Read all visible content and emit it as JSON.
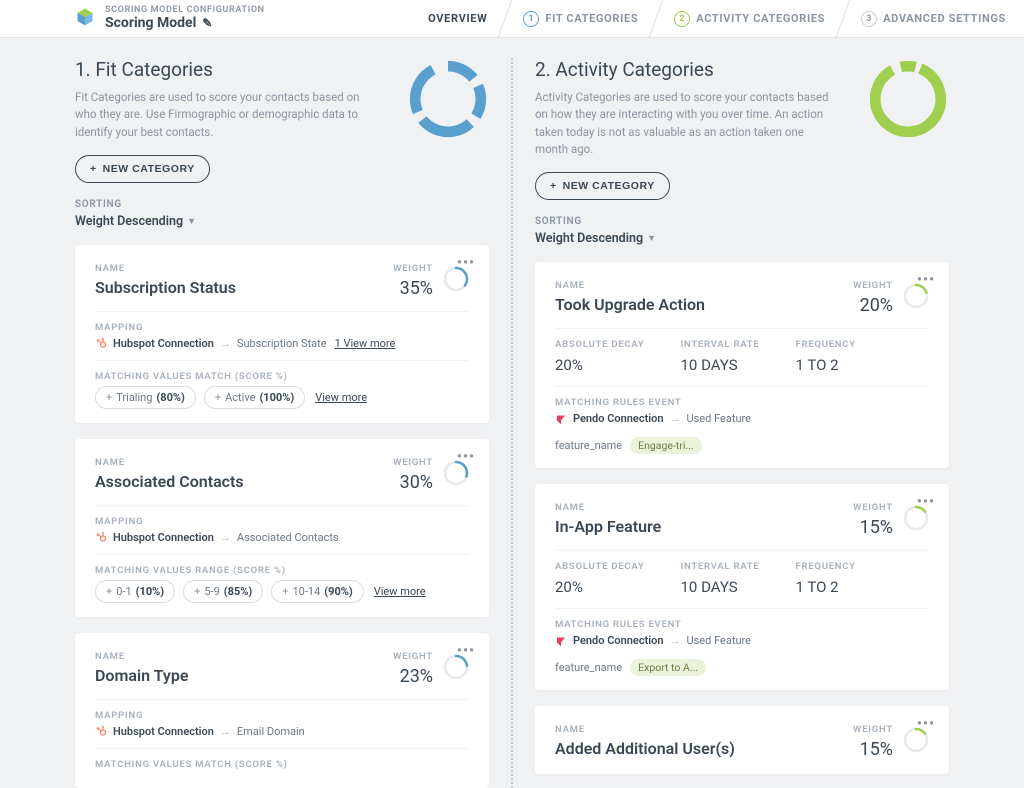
{
  "header": {
    "breadcrumb_top": "SCORING MODEL CONFIGURATION",
    "title": "Scoring Model",
    "steps": {
      "overview": "OVERVIEW",
      "fit": "FIT CATEGORIES",
      "activity": "ACTIVITY CATEGORIES",
      "advanced": "ADVANCED SETTINGS"
    }
  },
  "colors": {
    "fit": "#5aa0cf",
    "activity": "#a0ce4e",
    "ring_track": "#e6e9ed",
    "hubspot": "#ff7a59",
    "pendo": "#e83e5a"
  },
  "left": {
    "title": "1. Fit Categories",
    "desc": "Fit Categories are used to score your contacts based on who they are. Use Firmographic or demographic data to identify your best contacts.",
    "new_btn": "NEW CATEGORY",
    "sorting_label": "SORTING",
    "sorting_value": "Weight Descending",
    "donut_segments": [
      46,
      14,
      50,
      14,
      85,
      14,
      78,
      25
    ],
    "cards": [
      {
        "name_label": "NAME",
        "weight_label": "WEIGHT",
        "title": "Subscription Status",
        "weight": "35%",
        "ring_pct": 35,
        "mapping_label": "MAPPING",
        "conn_name": "Hubspot Connection",
        "map_target": "Subscription State",
        "view_more": "1 View more",
        "match_label": "MATCHING VALUES MATCH (SCORE %)",
        "pills": [
          {
            "text": "Trialing",
            "pct": "(80%)"
          },
          {
            "text": "Active",
            "pct": "(100%)"
          }
        ],
        "pills_view_more": "View more"
      },
      {
        "name_label": "NAME",
        "weight_label": "WEIGHT",
        "title": "Associated Contacts",
        "weight": "30%",
        "ring_pct": 30,
        "mapping_label": "MAPPING",
        "conn_name": "Hubspot Connection",
        "map_target": "Associated Contacts",
        "match_label": "MATCHING VALUES RANGE (SCORE %)",
        "pills": [
          {
            "text": "0-1",
            "pct": "(10%)"
          },
          {
            "text": "5-9",
            "pct": "(85%)"
          },
          {
            "text": "10-14",
            "pct": "(90%)"
          }
        ],
        "pills_view_more": "View more"
      },
      {
        "name_label": "NAME",
        "weight_label": "WEIGHT",
        "title": "Domain Type",
        "weight": "23%",
        "ring_pct": 23,
        "mapping_label": "MAPPING",
        "conn_name": "Hubspot Connection",
        "map_target": "Email Domain",
        "match_label": "MATCHING VALUES MATCH (SCORE %)"
      }
    ]
  },
  "right": {
    "title": "2. Activity Categories",
    "desc": "Activity Categories are used to score your contacts based on how they are interacting with you over time. An action taken today is not as valuable as an action taken one month ago.",
    "new_btn": "NEW CATEGORY",
    "sorting_label": "SORTING",
    "sorting_value": "Weight Descending",
    "donut_segments": [
      12,
      8,
      280,
      14,
      12
    ],
    "cards": [
      {
        "name_label": "NAME",
        "weight_label": "WEIGHT",
        "title": "Took Upgrade Action",
        "weight": "20%",
        "ring_pct": 20,
        "decay": {
          "abs_label": "ABSOLUTE DECAY",
          "abs_val": "20%",
          "int_label": "INTERVAL RATE",
          "int_val": "10 DAYS",
          "freq_label": "FREQUENCY",
          "freq_val": "1 TO 2"
        },
        "match_label": "MATCHING RULES EVENT",
        "conn_name": "Pendo Connection",
        "map_target": "Used Feature",
        "feat_key": "feature_name",
        "feat_val": "Engage-tri..."
      },
      {
        "name_label": "NAME",
        "weight_label": "WEIGHT",
        "title": "In-App Feature",
        "weight": "15%",
        "ring_pct": 15,
        "decay": {
          "abs_label": "ABSOLUTE DECAY",
          "abs_val": "20%",
          "int_label": "INTERVAL RATE",
          "int_val": "10 DAYS",
          "freq_label": "FREQUENCY",
          "freq_val": "1 TO 2"
        },
        "match_label": "MATCHING RULES EVENT",
        "conn_name": "Pendo Connection",
        "map_target": "Used Feature",
        "feat_key": "feature_name",
        "feat_val": "Export to A..."
      },
      {
        "name_label": "NAME",
        "weight_label": "WEIGHT",
        "title": "Added Additional User(s)",
        "weight": "15%",
        "ring_pct": 15
      }
    ]
  }
}
